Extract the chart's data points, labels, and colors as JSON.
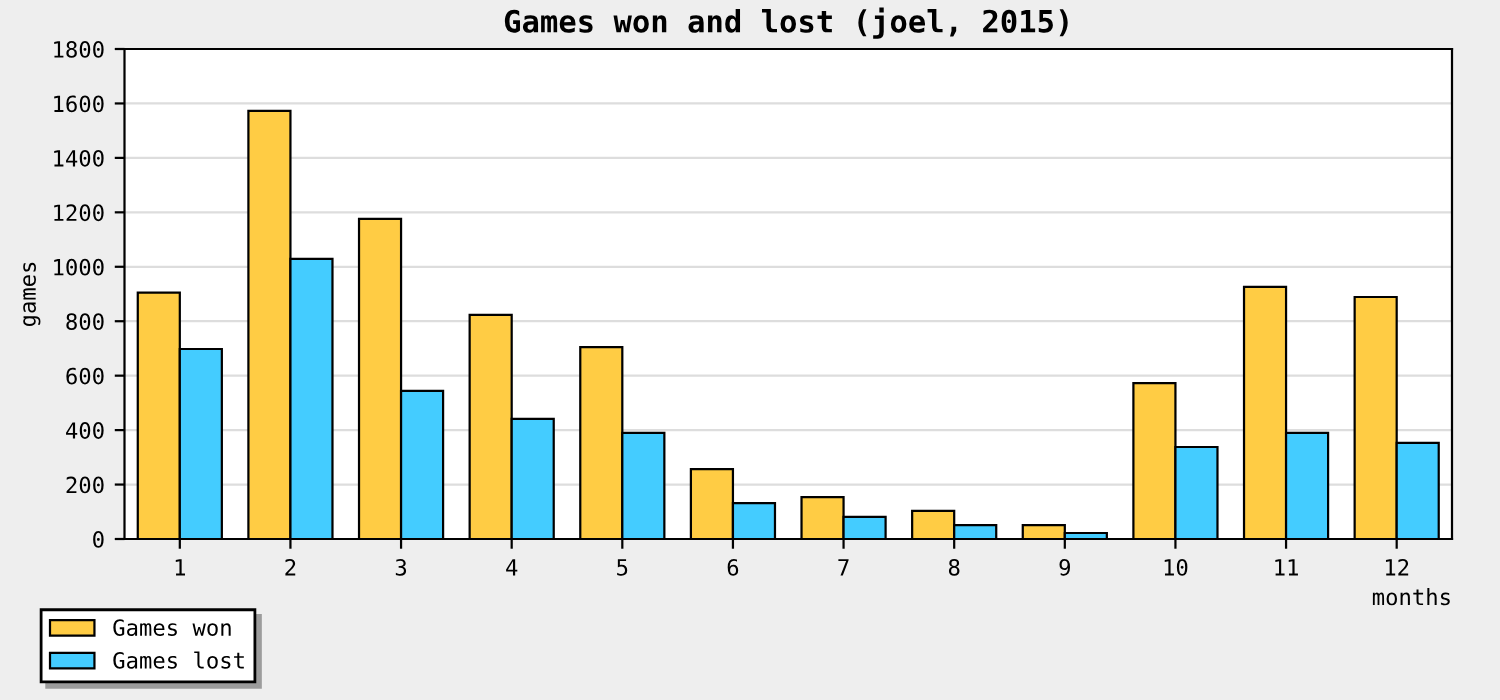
{
  "chart_data": {
    "type": "bar",
    "title": "Games won and lost (joel, 2015)",
    "xlabel": "months",
    "ylabel": "games",
    "categories": [
      "1",
      "2",
      "3",
      "4",
      "5",
      "6",
      "7",
      "8",
      "9",
      "10",
      "11",
      "12"
    ],
    "series": [
      {
        "name": "Games won",
        "color": "#ffcc44",
        "values": [
          905,
          1573,
          1176,
          823,
          705,
          257,
          154,
          103,
          51,
          573,
          926,
          889
        ]
      },
      {
        "name": "Games lost",
        "color": "#44ccff",
        "values": [
          698,
          1029,
          544,
          441,
          390,
          132,
          81,
          51,
          22,
          338,
          390,
          353
        ]
      }
    ],
    "ylim": [
      0,
      1800
    ],
    "yticks": [
      0,
      200,
      400,
      600,
      800,
      1000,
      1200,
      1400,
      1600,
      1800
    ],
    "grid": "y",
    "legend": "bottom left"
  }
}
